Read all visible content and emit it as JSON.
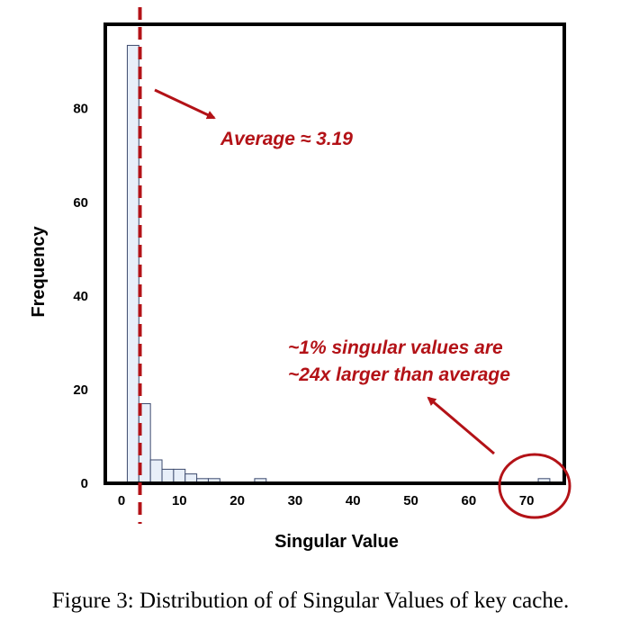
{
  "chart_data": {
    "type": "bar",
    "title": "",
    "xlabel": "Singular Value",
    "ylabel": "Frequency",
    "xlim": [
      -2.8,
      76.5
    ],
    "ylim": [
      0,
      98
    ],
    "x_ticks": [
      0,
      10,
      20,
      30,
      40,
      50,
      60,
      70
    ],
    "y_ticks": [
      0,
      20,
      40,
      60,
      80
    ],
    "bin_width": 2,
    "bins": [
      {
        "start": 1,
        "count": 93.5
      },
      {
        "start": 3,
        "count": 17
      },
      {
        "start": 5,
        "count": 5
      },
      {
        "start": 7,
        "count": 3
      },
      {
        "start": 9,
        "count": 3
      },
      {
        "start": 11,
        "count": 2
      },
      {
        "start": 13,
        "count": 1
      },
      {
        "start": 15,
        "count": 1
      },
      {
        "start": 23,
        "count": 1
      },
      {
        "start": 72,
        "count": 1
      }
    ],
    "average_line": {
      "value": 3.19
    },
    "annotations": [
      {
        "text": "Average ≈ 3.19",
        "lines": [
          "Average ≈ 3.19"
        ]
      },
      {
        "text": "~1% singular values are ~24x larger than average",
        "lines": [
          "~1% singular values are",
          "~24x larger than average"
        ]
      }
    ],
    "grid": false,
    "legend": "none"
  },
  "colors": {
    "bar_fill": "#e8eff9",
    "bar_stroke": "#3d4b6e",
    "annotation": "#b31217",
    "frame": "#000000"
  },
  "caption": "Figure 3: Distribution of of Singular Values of key cache."
}
